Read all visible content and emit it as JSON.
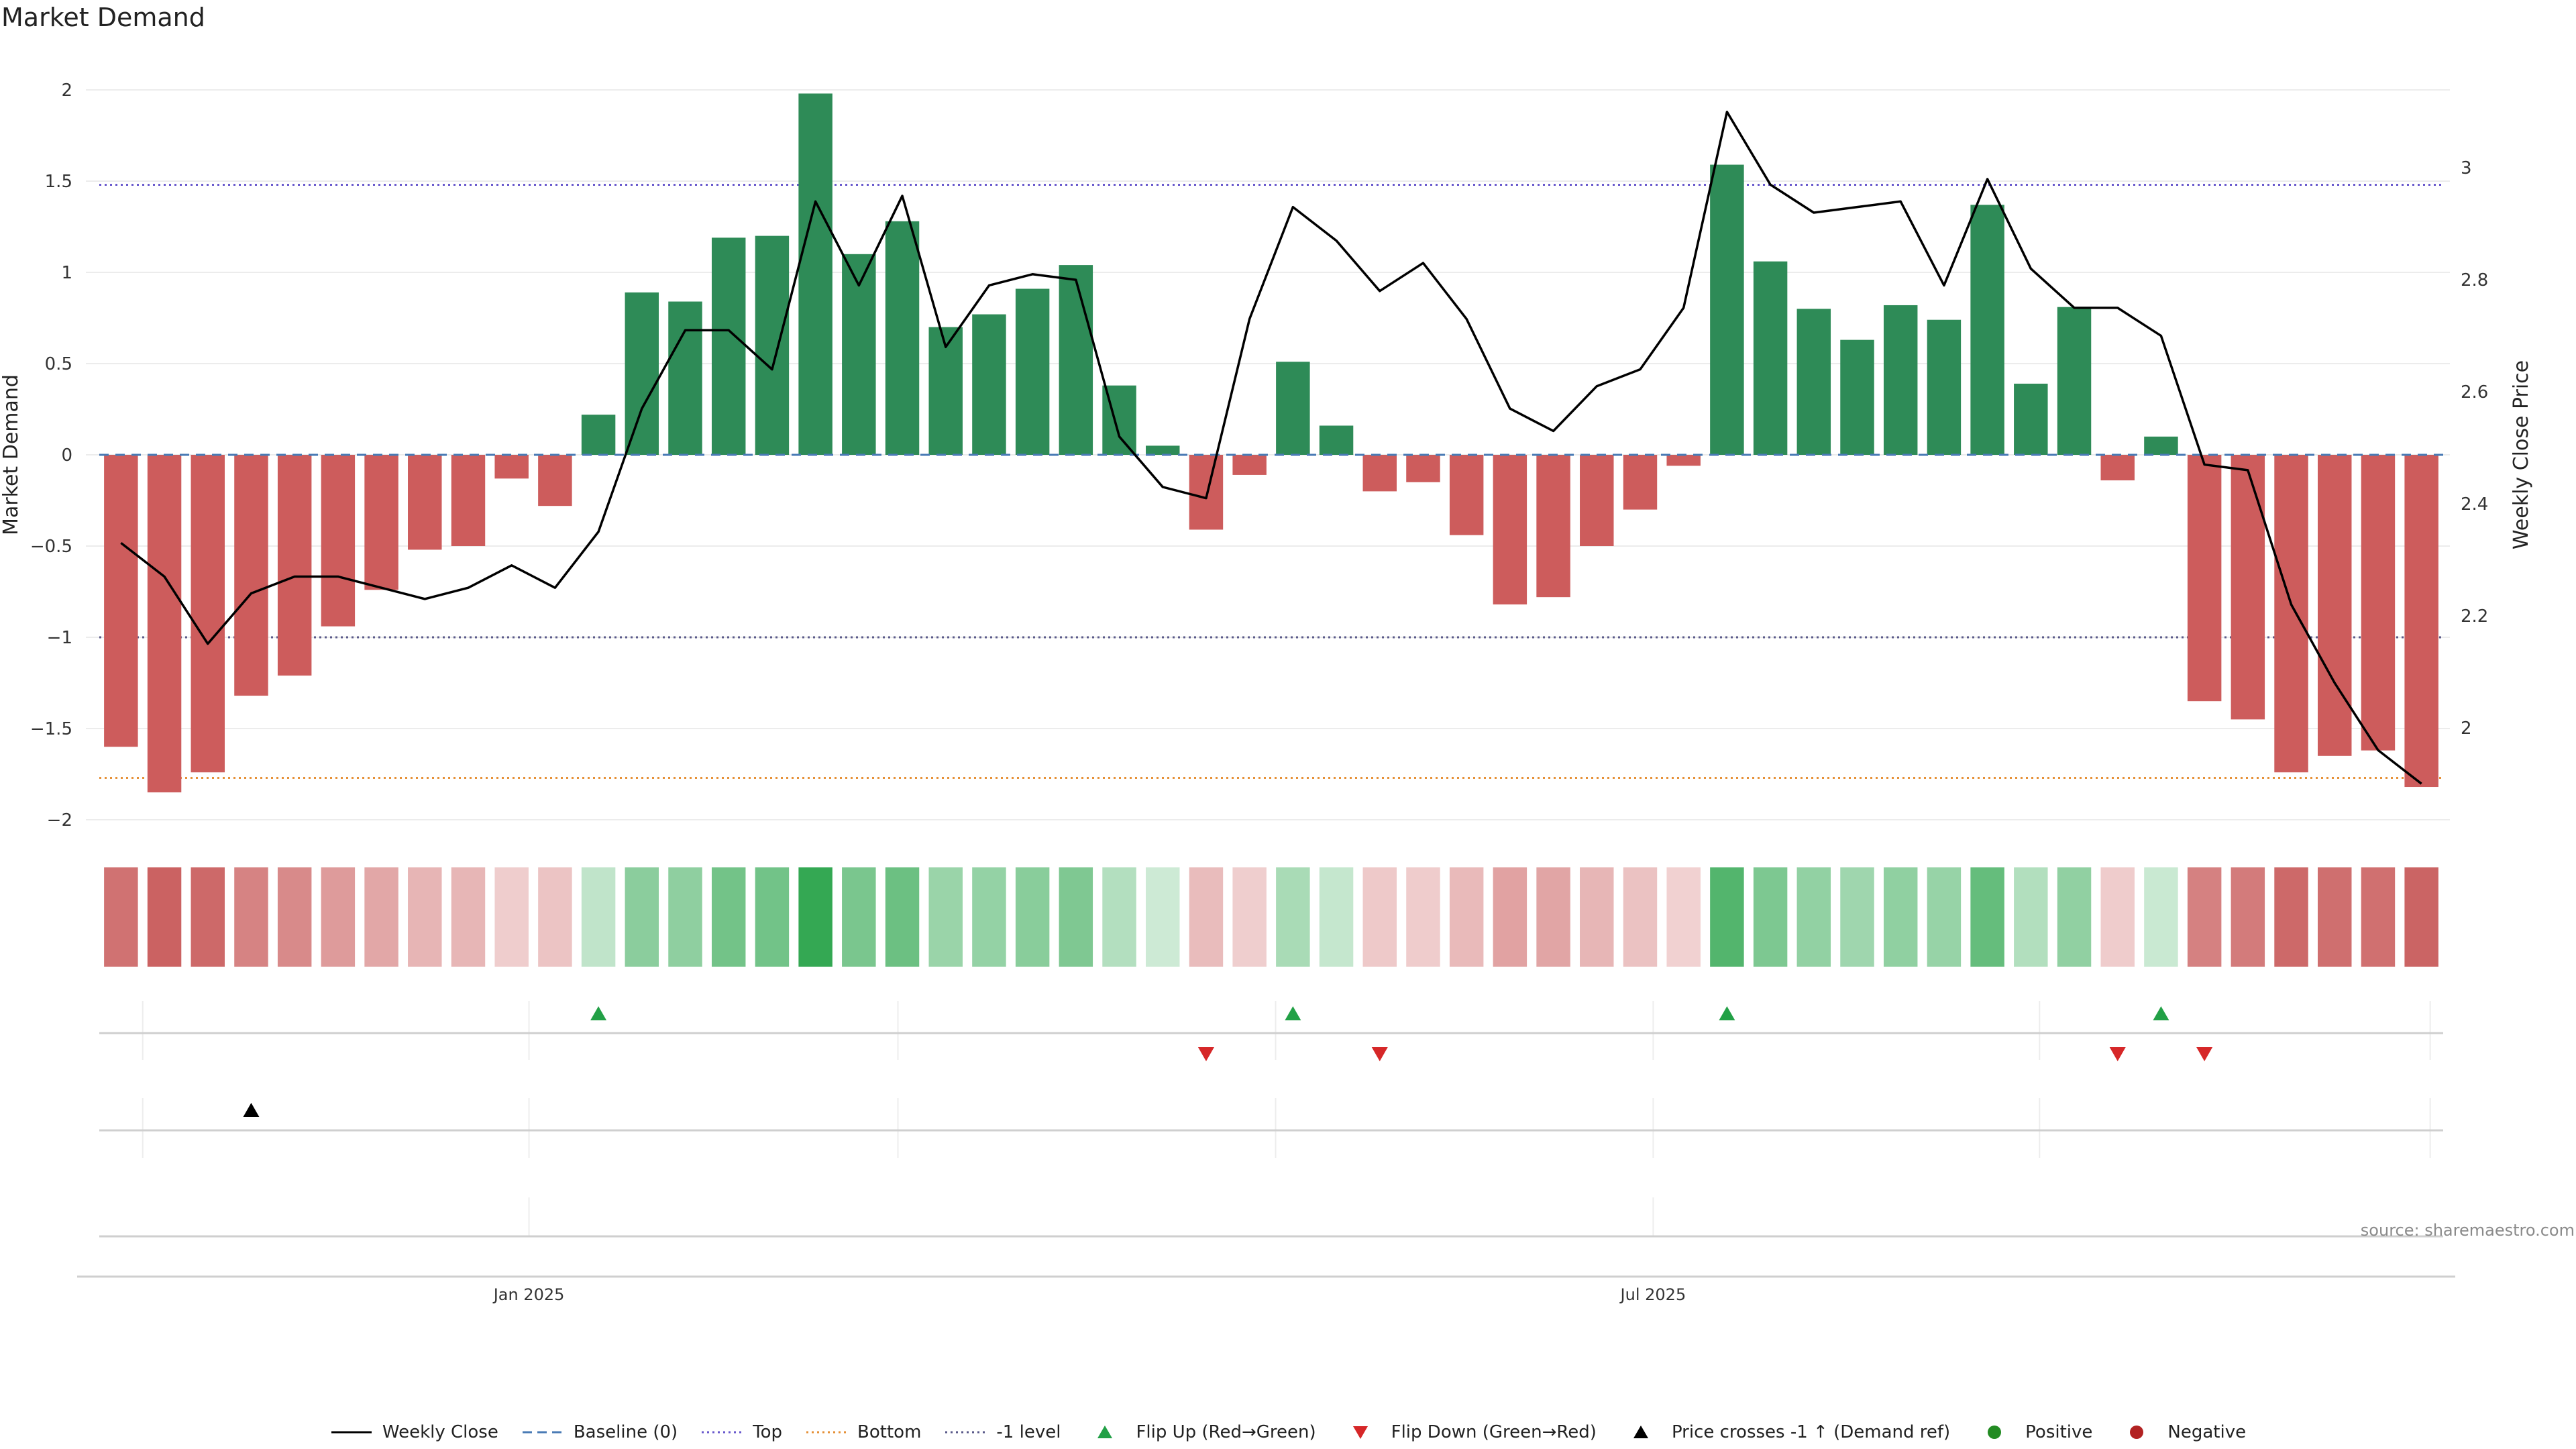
{
  "header": {
    "title": "Market Demand"
  },
  "footer": {
    "source": "source: sharemaestro.com"
  },
  "colors": {
    "positive": "#2e8b57",
    "negative": "#cd5c5c",
    "price_line": "#000000",
    "baseline": "#4a7bb5",
    "top": "#6a5acd",
    "bottom": "#e69138",
    "minus_one": "#5a5a8a",
    "flip_up": "#22a046",
    "flip_down": "#d62728",
    "cross_marker": "#000000"
  },
  "chart_data": {
    "type": "bar",
    "title": "Market Demand",
    "ylabel": "Market Demand",
    "y2label": "Weekly Close Price",
    "ylim": [
      -2.2,
      2.2
    ],
    "y2lim": [
      1.88,
      3.15
    ],
    "yticks": [
      {
        "v": 2,
        "label": "2"
      },
      {
        "v": 1.5,
        "label": "1.5"
      },
      {
        "v": 1,
        "label": "1"
      },
      {
        "v": 0.5,
        "label": "0.5"
      },
      {
        "v": 0,
        "label": "0"
      },
      {
        "v": -0.5,
        "label": "−0.5"
      },
      {
        "v": -1,
        "label": "−1"
      },
      {
        "v": -1.5,
        "label": "−1.5"
      },
      {
        "v": -2,
        "label": "−2"
      }
    ],
    "y2ticks": [
      {
        "v": 3,
        "label": "3"
      },
      {
        "v": 2.8,
        "label": "2.8"
      },
      {
        "v": 2.6,
        "label": "2.6"
      },
      {
        "v": 2.4,
        "label": "2.4"
      },
      {
        "v": 2.2,
        "label": "2.2"
      },
      {
        "v": 2,
        "label": "2"
      }
    ],
    "xticks": [
      {
        "index": 9.4,
        "label": "Jan 2025"
      },
      {
        "index": 35.3,
        "label": "Jul 2025"
      }
    ],
    "date_gridlines": [
      0.5,
      9.4,
      17.9,
      26.6,
      35.3,
      44.2,
      53.2
    ],
    "levels": {
      "baseline": 0,
      "top": 1.48,
      "bottom": -1.77,
      "minus_one": -1
    },
    "demand": [
      -1.6,
      -1.85,
      -1.74,
      -1.32,
      -1.21,
      -0.94,
      -0.74,
      -0.52,
      -0.5,
      -0.13,
      -0.28,
      0.22,
      0.89,
      0.84,
      1.19,
      1.2,
      1.98,
      1.1,
      1.28,
      0.7,
      0.77,
      0.91,
      1.04,
      0.38,
      0.05,
      -0.41,
      -0.11,
      0.51,
      0.16,
      -0.2,
      -0.15,
      -0.44,
      -0.82,
      -0.78,
      -0.5,
      -0.3,
      -0.06,
      1.59,
      1.06,
      0.8,
      0.63,
      0.82,
      0.74,
      1.37,
      0.39,
      0.81,
      -0.14,
      0.1,
      -1.35,
      -1.45,
      -1.74,
      -1.65,
      -1.62,
      -1.82
    ],
    "price": [
      2.33,
      2.27,
      2.15,
      2.24,
      2.27,
      2.27,
      2.25,
      2.23,
      2.25,
      2.29,
      2.25,
      2.35,
      2.57,
      2.71,
      2.71,
      2.64,
      2.94,
      2.79,
      2.95,
      2.68,
      2.79,
      2.81,
      2.8,
      2.52,
      2.43,
      2.41,
      2.73,
      2.93,
      2.87,
      2.78,
      2.83,
      2.73,
      2.57,
      2.53,
      2.61,
      2.64,
      2.75,
      3.1,
      2.97,
      2.92,
      2.93,
      2.94,
      2.79,
      2.98,
      2.82,
      2.75,
      2.75,
      2.7,
      2.47,
      2.46,
      2.22,
      2.08,
      1.96,
      1.9
    ],
    "flip_up": [
      11,
      27,
      37,
      47
    ],
    "flip_down": [
      25,
      29,
      46,
      48
    ],
    "price_cross": [
      3
    ]
  },
  "legend": [
    {
      "label": "Weekly Close",
      "key": "line",
      "color": "#000000"
    },
    {
      "label": "Baseline (0)",
      "key": "dashed",
      "color": "#4a7bb5"
    },
    {
      "label": "Top",
      "key": "dotted",
      "color": "#6a5acd"
    },
    {
      "label": "Bottom",
      "key": "dotted",
      "color": "#e69138"
    },
    {
      "label": "-1 level",
      "key": "dotted",
      "color": "#5a5a8a"
    },
    {
      "label": "Flip Up (Red→Green)",
      "key": "tri-up",
      "color": "#22a046"
    },
    {
      "label": "Flip Down (Green→Red)",
      "key": "tri-down",
      "color": "#d62728"
    },
    {
      "label": "Price crosses -1 ↑ (Demand ref)",
      "key": "tri-up",
      "color": "#000000"
    },
    {
      "label": "Positive",
      "key": "dot",
      "color": "#228b22"
    },
    {
      "label": "Negative",
      "key": "dot",
      "color": "#b22222"
    }
  ]
}
